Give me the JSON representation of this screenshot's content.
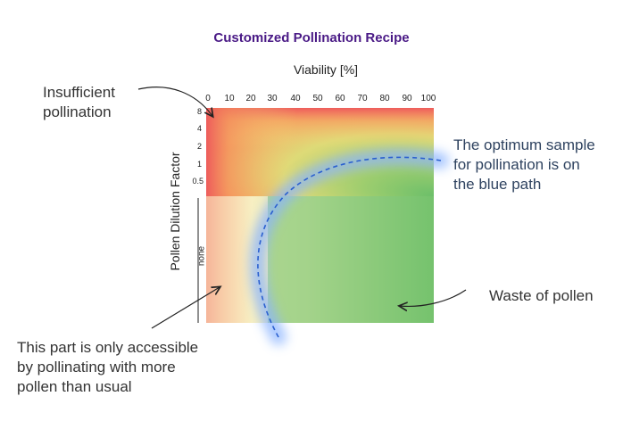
{
  "title": "Customized Pollination Recipe",
  "x_axis": {
    "label": "Viability [%]",
    "ticks": [
      "0",
      "10",
      "20",
      "30",
      "40",
      "50",
      "60",
      "70",
      "80",
      "90",
      "100"
    ]
  },
  "y_axis": {
    "label": "Pollen Dilution Factor",
    "ticks": [
      "8",
      "4",
      "2",
      "1",
      "0.5"
    ],
    "lower_label": "none"
  },
  "annotations": {
    "insufficient": "Insufficient\npollination",
    "optimum": "The optimum sample\nfor pollination is on\nthe blue path",
    "waste": "Waste of pollen",
    "accessible": "This part is only accessible\nby pollinating with more\npollen than usual"
  },
  "colors": {
    "title": "#4a1a86",
    "path": "#2a5fcf",
    "glow": "#8ab4ff",
    "insufficient_zone": "#ee5c5c",
    "waste_zone": "#6cbf6a"
  }
}
